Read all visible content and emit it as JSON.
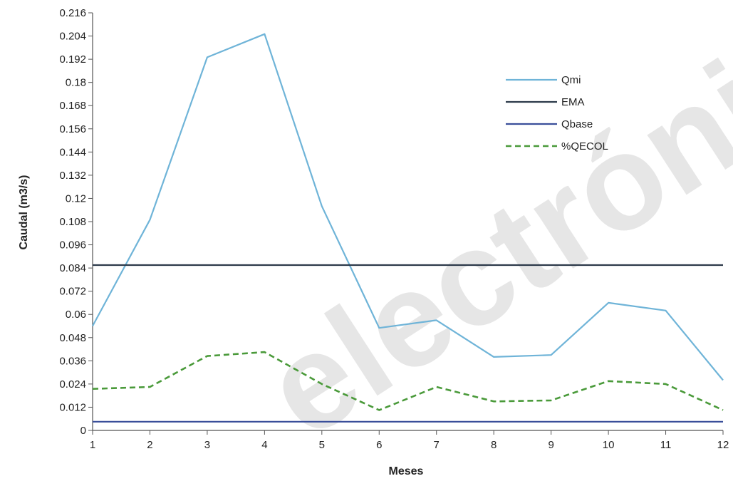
{
  "chart_data": {
    "type": "line",
    "title": "",
    "xlabel": "Meses",
    "ylabel": "Caudal (m3/s)",
    "watermark": "electróni",
    "x": [
      1,
      2,
      3,
      4,
      5,
      6,
      7,
      8,
      9,
      10,
      11,
      12
    ],
    "xlim": [
      1,
      12
    ],
    "ylim": [
      0,
      0.216
    ],
    "yticks": [
      "0",
      "0.012",
      "0.024",
      "0.036",
      "0.048",
      "0.06",
      "0.072",
      "0.084",
      "0.096",
      "0.108",
      "0.12",
      "0.132",
      "0.144",
      "0.156",
      "0.168",
      "0.18",
      "0.192",
      "0.204",
      "0.216"
    ],
    "xticks": [
      "1",
      "2",
      "3",
      "4",
      "5",
      "6",
      "7",
      "8",
      "9",
      "10",
      "11",
      "12"
    ],
    "grid": false,
    "legend_position": "top-right",
    "series": [
      {
        "name": "Qmi",
        "color": "#6fb4d8",
        "dash": "solid",
        "values": [
          0.054,
          0.109,
          0.193,
          0.205,
          0.116,
          0.053,
          0.057,
          0.038,
          0.039,
          0.066,
          0.062,
          0.026
        ]
      },
      {
        "name": "EMA",
        "color": "#2d3a4a",
        "dash": "solid",
        "values": [
          0.0855,
          0.0855,
          0.0855,
          0.0855,
          0.0855,
          0.0855,
          0.0855,
          0.0855,
          0.0855,
          0.0855,
          0.0855,
          0.0855
        ]
      },
      {
        "name": "Qbase",
        "color": "#3a4f9a",
        "dash": "solid",
        "values": [
          0.0045,
          0.0045,
          0.0045,
          0.0045,
          0.0045,
          0.0045,
          0.0045,
          0.0045,
          0.0045,
          0.0045,
          0.0045,
          0.0045
        ]
      },
      {
        "name": "%QECOL",
        "color": "#4a9a3a",
        "dash": "dashed",
        "values": [
          0.0215,
          0.0225,
          0.0385,
          0.0405,
          0.024,
          0.0105,
          0.0225,
          0.015,
          0.0155,
          0.0255,
          0.024,
          0.0105
        ]
      }
    ]
  }
}
